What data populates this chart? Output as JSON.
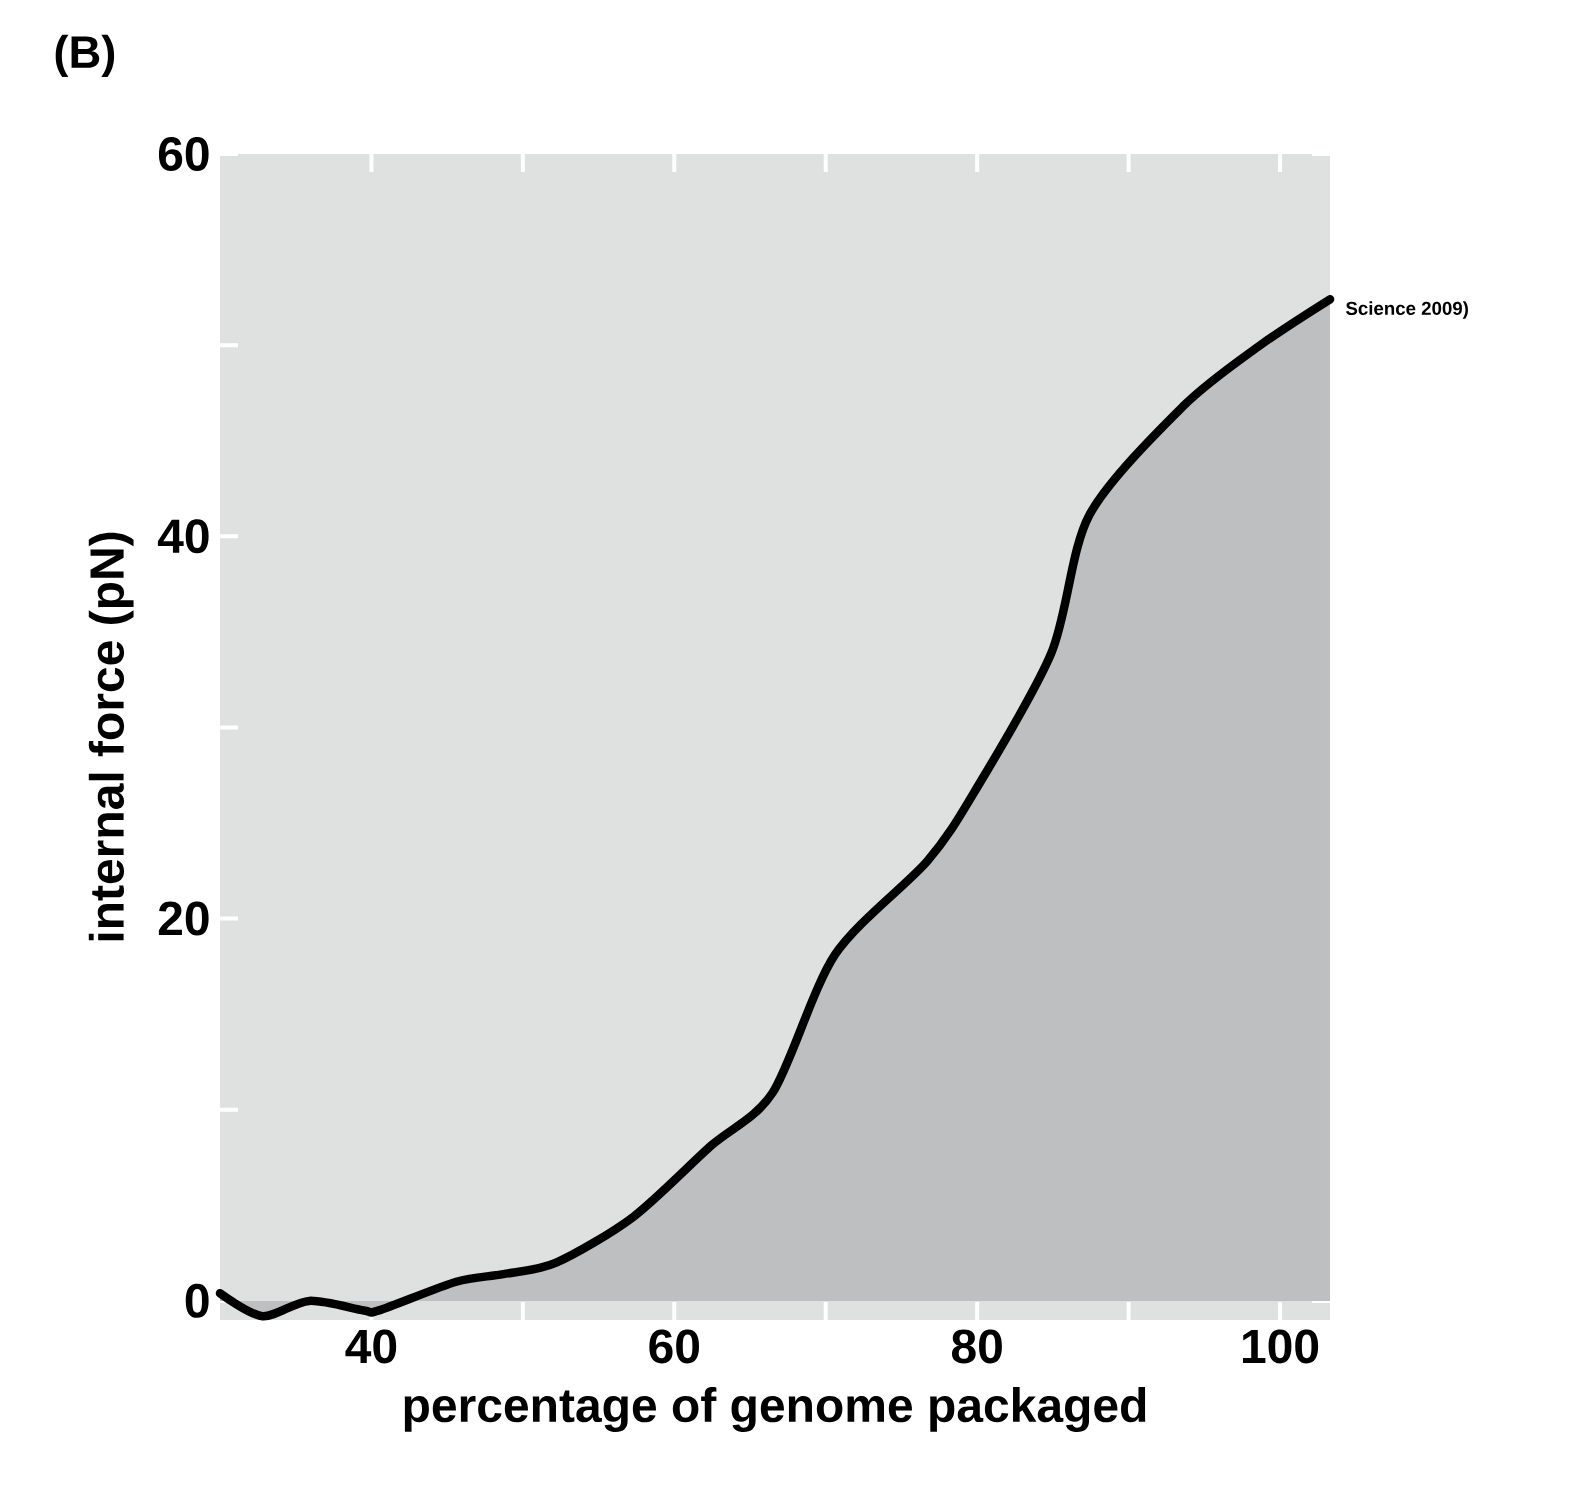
{
  "chart_data": {
    "type": "area",
    "title": "(B)",
    "xlabel": "percentage of genome packaged",
    "ylabel": "internal force (pN)",
    "annotations": [
      "Science 2009)"
    ],
    "x": [
      30.0,
      32.8,
      35.9,
      39.5,
      40.5,
      45.6,
      48.7,
      52.2,
      57.3,
      62.4,
      66.5,
      70.6,
      76.7,
      79.8,
      84.9,
      87.4,
      93.6,
      98.7,
      103.3
    ],
    "series": [
      {
        "color": "#bebfc1",
        "values": [
          0.4,
          -0.8,
          0,
          -0.5,
          -0.5,
          1.0,
          1.4,
          2.0,
          4.4,
          8.1,
          10.9,
          18.1,
          23.0,
          26.6,
          33.9,
          41.1,
          46.8,
          50.0,
          52.4
        ]
      }
    ],
    "xlim": [
      30,
      103.3
    ],
    "ylim": [
      -1,
      60
    ],
    "xticks": [
      40,
      {
        "value": 50,
        "label": null
      },
      60,
      {
        "value": 70,
        "label": null
      },
      80,
      {
        "value": 90,
        "label": null
      },
      100
    ],
    "yticks": [
      0,
      {
        "value": 10,
        "label": null
      },
      20,
      {
        "value": 30,
        "label": null
      },
      40,
      {
        "value": 50,
        "label": null
      },
      60
    ]
  }
}
